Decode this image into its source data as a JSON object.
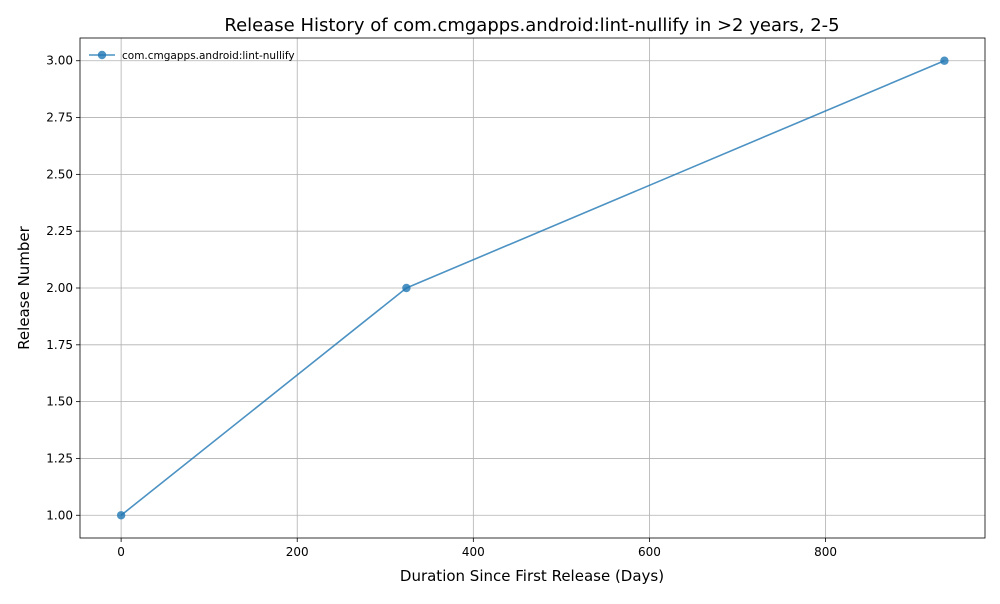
{
  "chart_data": {
    "type": "line",
    "title": "Release History of com.cmgapps.android:lint-nullify in >2 years, 2-5",
    "xlabel": "Duration Since First Release (Days)",
    "ylabel": "Release Number",
    "xlim": [
      -46.7,
      981.1
    ],
    "ylim": [
      0.9,
      3.1
    ],
    "x_ticks": [
      0,
      200,
      400,
      600,
      800
    ],
    "y_ticks": [
      1.0,
      1.25,
      1.5,
      1.75,
      2.0,
      2.25,
      2.5,
      2.75,
      3.0
    ],
    "x_tick_labels": [
      "0",
      "200",
      "400",
      "600",
      "800"
    ],
    "y_tick_labels": [
      "1.00",
      "1.25",
      "1.50",
      "1.75",
      "2.00",
      "2.25",
      "2.50",
      "2.75",
      "3.00"
    ],
    "grid": true,
    "legend_position": "upper-left",
    "series": [
      {
        "name": "com.cmgapps.android:lint-nullify",
        "color": "#1f77b4",
        "marker": "circle",
        "x": [
          0,
          324,
          935
        ],
        "y": [
          1,
          2,
          3
        ]
      }
    ]
  }
}
